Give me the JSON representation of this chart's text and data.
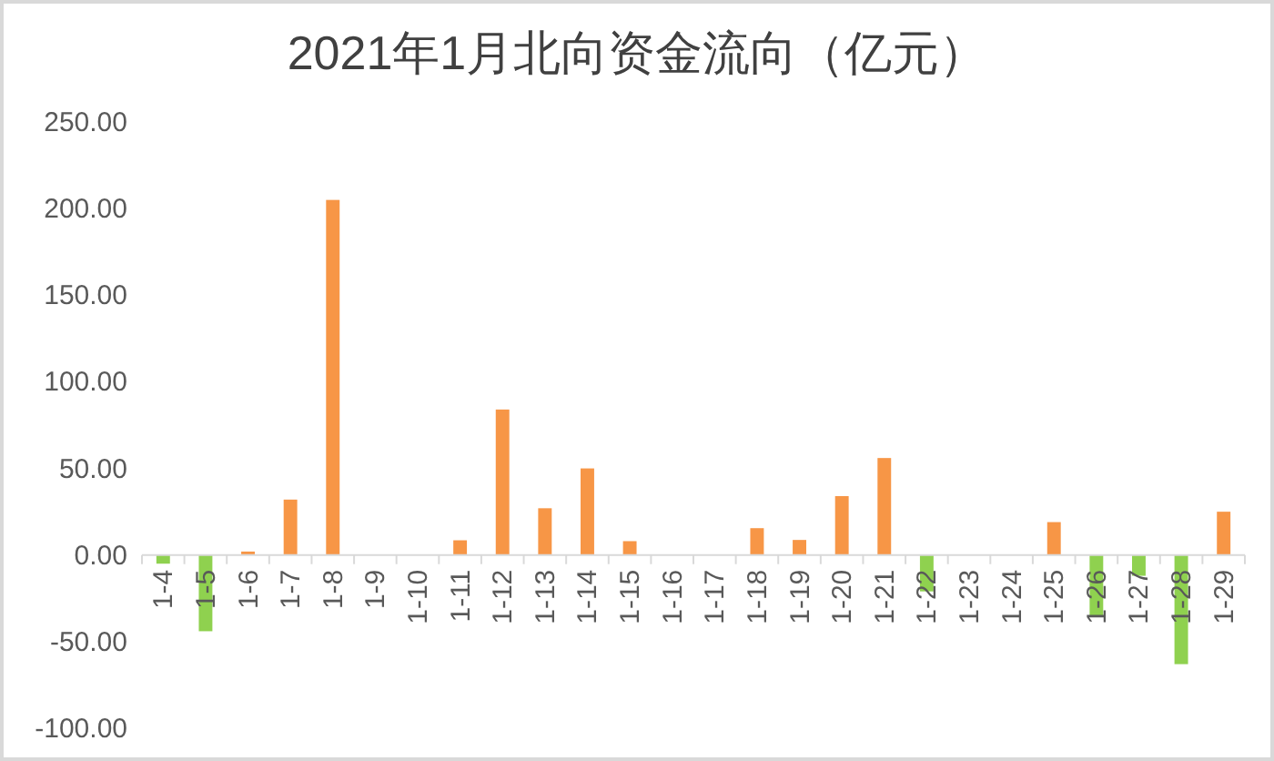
{
  "chart_data": {
    "type": "bar",
    "title": "2021年1月北向资金流向（亿元）",
    "categories": [
      "1-4",
      "1-5",
      "1-6",
      "1-7",
      "1-8",
      "1-9",
      "1-10",
      "1-11",
      "1-12",
      "1-13",
      "1-14",
      "1-15",
      "1-16",
      "1-17",
      "1-18",
      "1-19",
      "1-20",
      "1-21",
      "1-22",
      "1-23",
      "1-24",
      "1-25",
      "1-26",
      "1-27",
      "1-28",
      "1-29"
    ],
    "values": [
      -5,
      -44,
      2,
      32,
      205,
      null,
      null,
      8.5,
      84,
      27,
      50,
      8,
      null,
      null,
      15.5,
      8.7,
      34,
      56,
      -21,
      null,
      null,
      19,
      -35,
      -12,
      -63,
      25
    ],
    "colors": [
      "#8fd14f",
      "#8fd14f",
      "#f79646",
      "#f79646",
      "#f79646",
      null,
      null,
      "#f79646",
      "#f79646",
      "#f79646",
      "#f79646",
      "#f79646",
      null,
      null,
      "#f79646",
      "#f79646",
      "#f79646",
      "#f79646",
      "#8fd14f",
      null,
      null,
      "#f79646",
      "#8fd14f",
      "#8fd14f",
      "#8fd14f",
      "#f79646"
    ],
    "ylim": [
      -100,
      250
    ],
    "yticks": [
      {
        "value": -100,
        "label": "-100.00"
      },
      {
        "value": -50,
        "label": "-50.00"
      },
      {
        "value": 0,
        "label": "0.00"
      },
      {
        "value": 50,
        "label": "50.00"
      },
      {
        "value": 100,
        "label": "100.00"
      },
      {
        "value": 150,
        "label": "150.00"
      },
      {
        "value": 200,
        "label": "200.00"
      },
      {
        "value": 250,
        "label": "250.00"
      }
    ],
    "grid": false
  }
}
